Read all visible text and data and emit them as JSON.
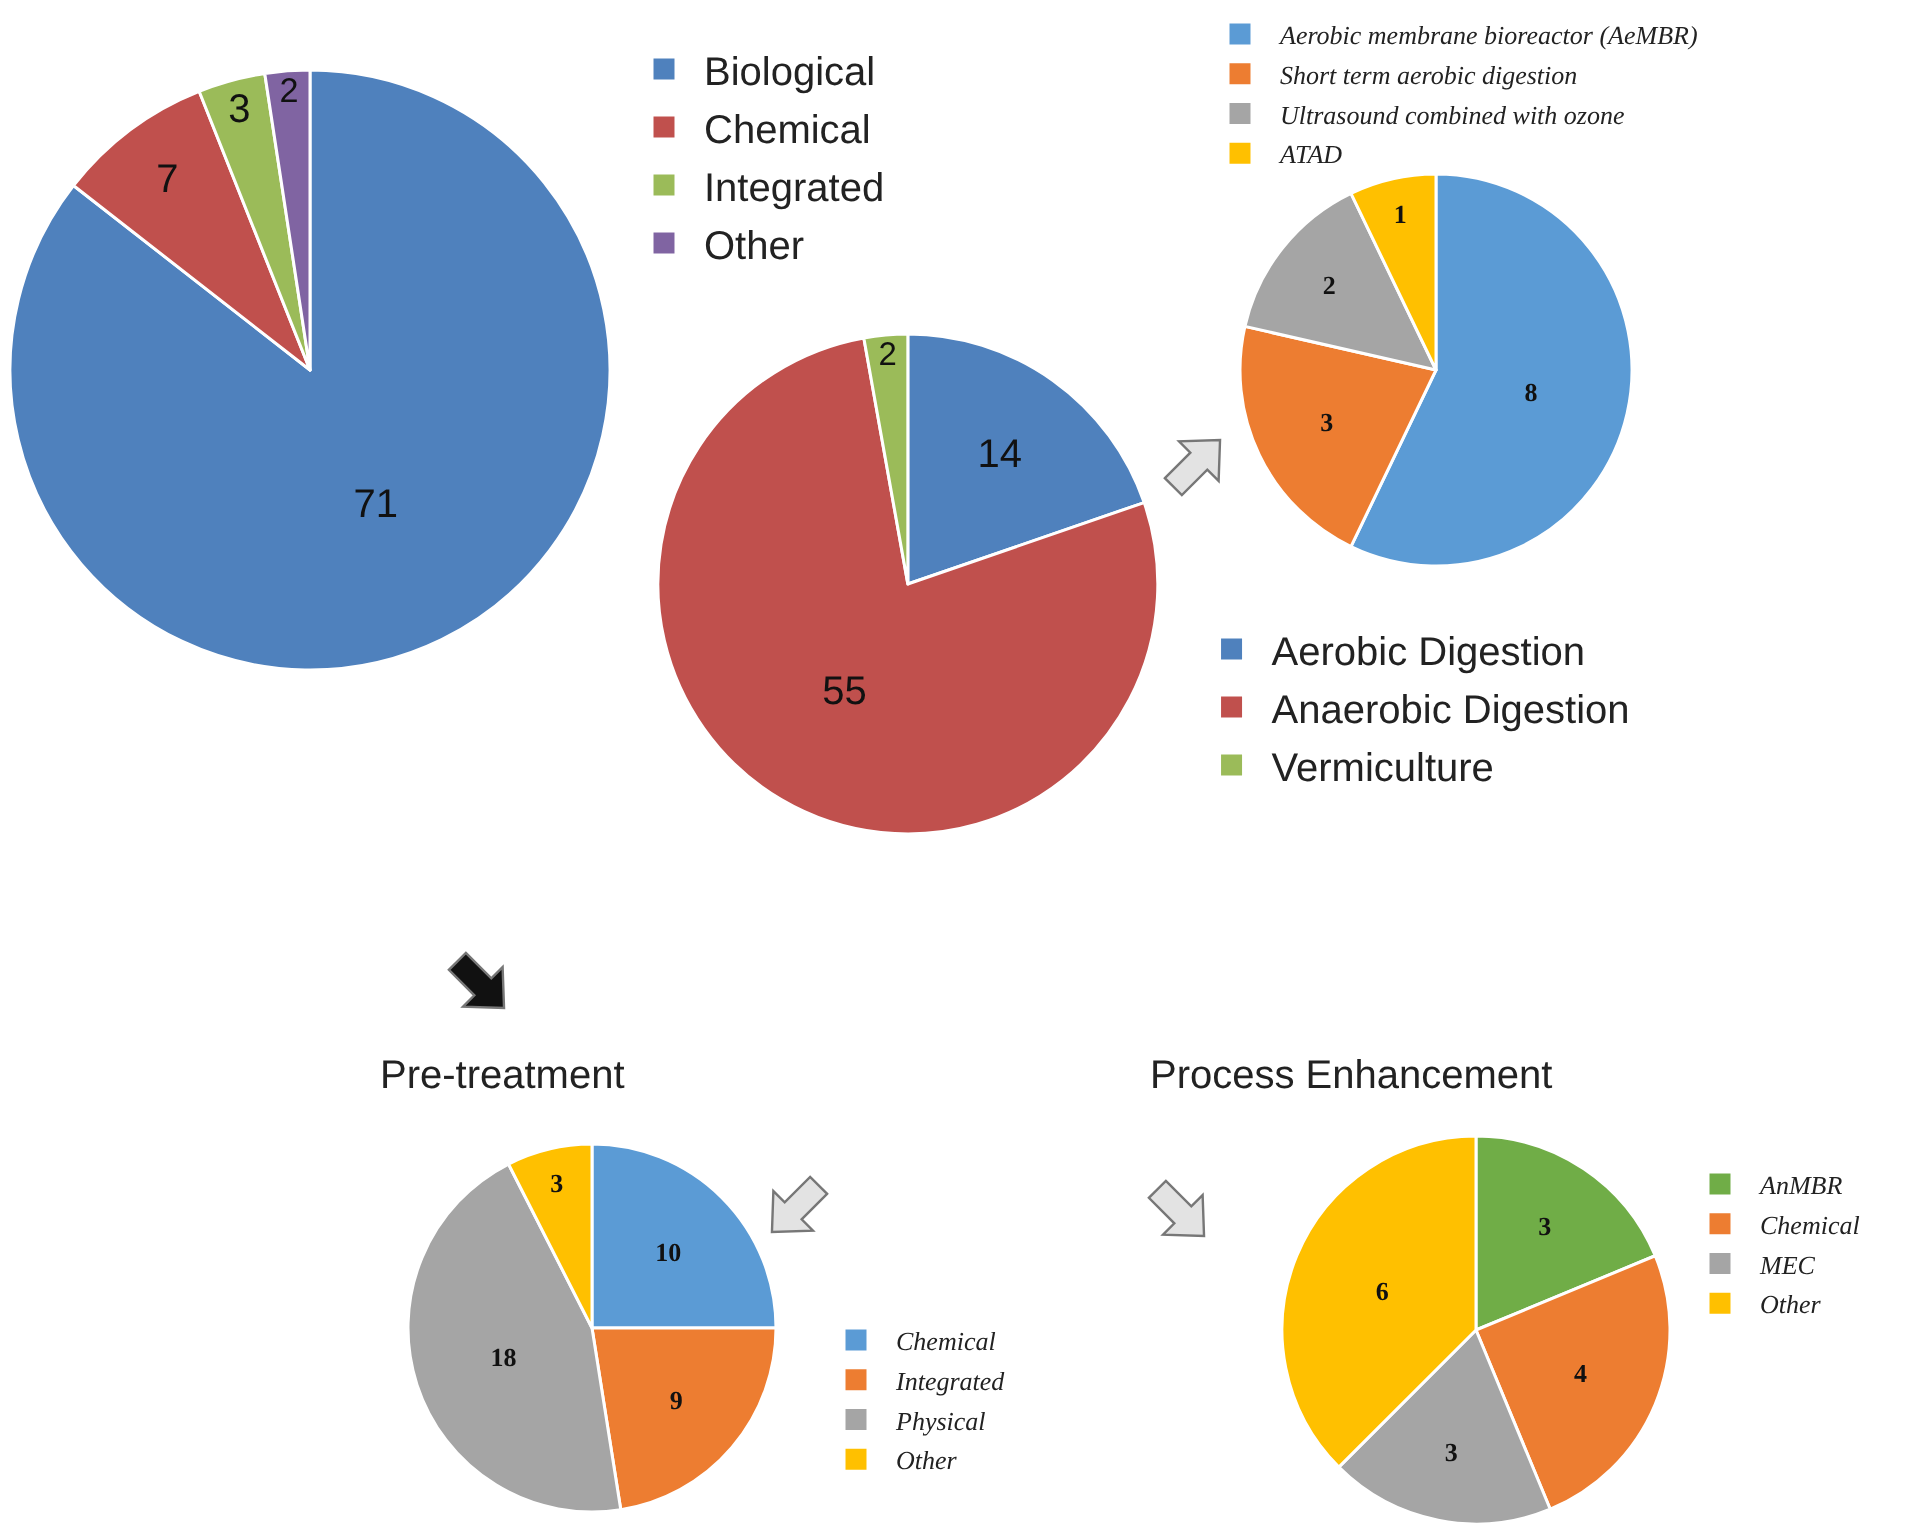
{
  "chart_data": [
    {
      "type": "pie",
      "categories": [
        "Biological",
        "Chemical",
        "Integrated",
        "Other"
      ],
      "values": [
        71,
        7,
        3,
        2
      ],
      "colors": [
        "#4f81bd",
        "#c0504d",
        "#9bbb59",
        "#8064a2"
      ],
      "data_labels": true,
      "legend": "top right"
    },
    {
      "type": "pie",
      "categories": [
        "Aerobic Digestion",
        "Anaerobic Digestion",
        "Vermiculture"
      ],
      "values": [
        14,
        55,
        2
      ],
      "colors": [
        "#4f81bd",
        "#c0504d",
        "#9bbb59"
      ],
      "data_labels": true,
      "legend": "right"
    },
    {
      "type": "pie",
      "categories": [
        "Aerobic membrane bioreactor (AeMBR)",
        "Short term aerobic digestion",
        "Ultrasound combined with ozone",
        "ATAD"
      ],
      "values": [
        8,
        3,
        2,
        1
      ],
      "colors": [
        "#5b9bd5",
        "#ed7d31",
        "#a5a5a5",
        "#ffc000"
      ],
      "data_labels": true,
      "legend": "top"
    },
    {
      "type": "pie",
      "title": "Pre-treatment",
      "categories": [
        "Chemical",
        "Integrated",
        "Physical",
        "Other"
      ],
      "values": [
        10,
        9,
        18,
        3
      ],
      "colors": [
        "#5b9bd5",
        "#ed7d31",
        "#a5a5a5",
        "#ffc000"
      ],
      "data_labels": true,
      "legend": "right"
    },
    {
      "type": "pie",
      "title": "Process Enhancement",
      "categories": [
        "AnMBR",
        "Chemical",
        "MEC",
        "Other"
      ],
      "values": [
        3,
        4,
        3,
        6
      ],
      "colors": [
        "#70ad47",
        "#ed7d31",
        "#a5a5a5",
        "#ffc000"
      ],
      "data_labels": true,
      "legend": "right"
    }
  ]
}
